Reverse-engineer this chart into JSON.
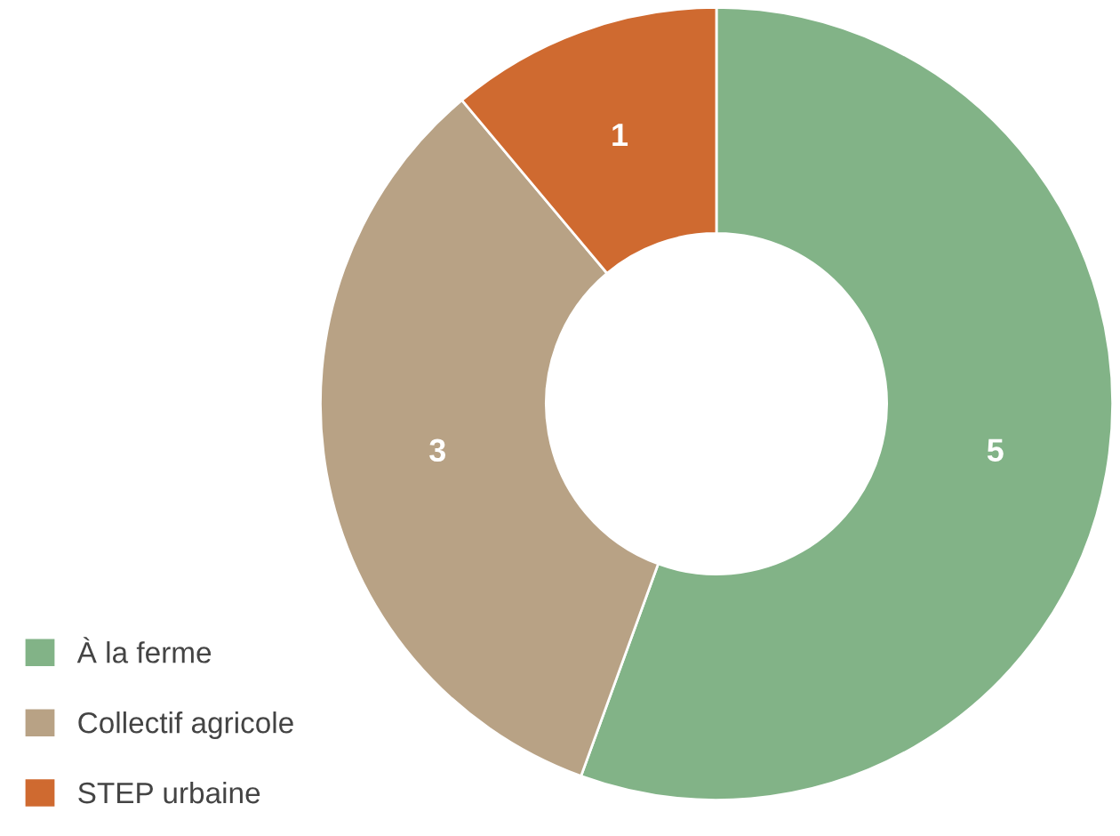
{
  "chart_data": {
    "type": "donut",
    "categories": [
      "À la ferme",
      "Collectif agricole",
      "STEP urbaine"
    ],
    "values": [
      5,
      3,
      1
    ],
    "colors": [
      "#82b387",
      "#b8a285",
      "#cf6a30"
    ],
    "data_labels": true,
    "legend": "bottom left"
  }
}
